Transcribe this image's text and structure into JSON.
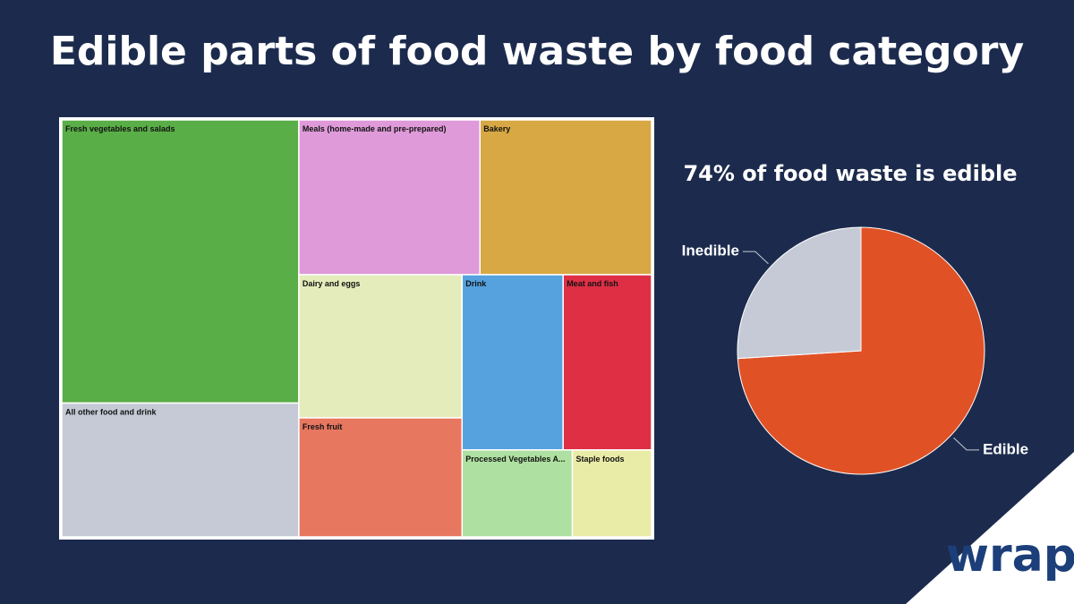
{
  "title": "Edible parts of food waste by food category",
  "logo": "wrap",
  "chart_data": [
    {
      "type": "treemap",
      "categories": [
        "Fresh vegetables and salads",
        "All other food and drink",
        "Meals (home-made and pre-prepared)",
        "Bakery",
        "Dairy and eggs",
        "Fresh fruit",
        "Drink",
        "Meat and fish",
        "Processed Vegetables A...",
        "Staple foods"
      ],
      "values": [
        27.3,
        12.9,
        11.4,
        10.8,
        9.5,
        7.9,
        7.2,
        6.3,
        3.9,
        2.8
      ],
      "colors": [
        "#5aae47",
        "#c5cad6",
        "#df9ad9",
        "#d8a844",
        "#e4ecbb",
        "#e87760",
        "#55a2de",
        "#de2f45",
        "#aee1a1",
        "#e9eca7"
      ]
    },
    {
      "type": "pie",
      "title": "74% of food waste is edible",
      "categories": [
        "Edible",
        "Inedible"
      ],
      "values": [
        74,
        26
      ],
      "colors": [
        "#e05226",
        "#c5cad6"
      ]
    }
  ]
}
